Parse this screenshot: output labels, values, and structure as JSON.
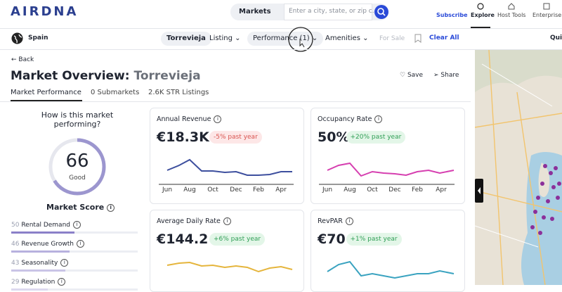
{
  "header": {
    "logo": "AIRDNA",
    "search_type": "Markets",
    "search_placeholder": "Enter a city, state, or zip c...",
    "subscribe": "Subscribe",
    "nav": [
      "Explore",
      "Host Tools",
      "Enterprise"
    ]
  },
  "filters": {
    "country": "Spain",
    "chips": [
      "Torrevieja",
      "Listing",
      "Performance (1)",
      "Amenities"
    ],
    "for_sale": "For Sale",
    "clear_all": "Clear All",
    "quick": "Qui"
  },
  "overview": {
    "back": "Back",
    "title": "Market Overview:",
    "market": "Torrevieja",
    "save": "Save",
    "share": "Share",
    "tabs": [
      "Market Performance",
      "0 Submarkets",
      "2.6K STR Listings"
    ]
  },
  "score": {
    "question": [
      "How is this market",
      "performing?"
    ],
    "value": 66,
    "rating": "Good",
    "label": "Market Score",
    "rows": [
      {
        "value": 50,
        "label": "Rental Demand"
      },
      {
        "value": 46,
        "label": "Revenue Growth"
      },
      {
        "value": 43,
        "label": "Seasonality"
      },
      {
        "value": 29,
        "label": "Regulation"
      }
    ]
  },
  "months": [
    "Jun",
    "Aug",
    "Oct",
    "Dec",
    "Feb",
    "Apr"
  ],
  "cards": [
    {
      "title": "Annual Revenue",
      "value": "€18.3K",
      "change": "-5% past year"
    },
    {
      "title": "Occupancy Rate",
      "value": "50%",
      "change": "+20% past year"
    },
    {
      "title": "Average Daily Rate",
      "value": "€144.2",
      "change": "+6% past year"
    },
    {
      "title": "RevPAR",
      "value": "€70",
      "change": "+1% past year"
    }
  ]
}
